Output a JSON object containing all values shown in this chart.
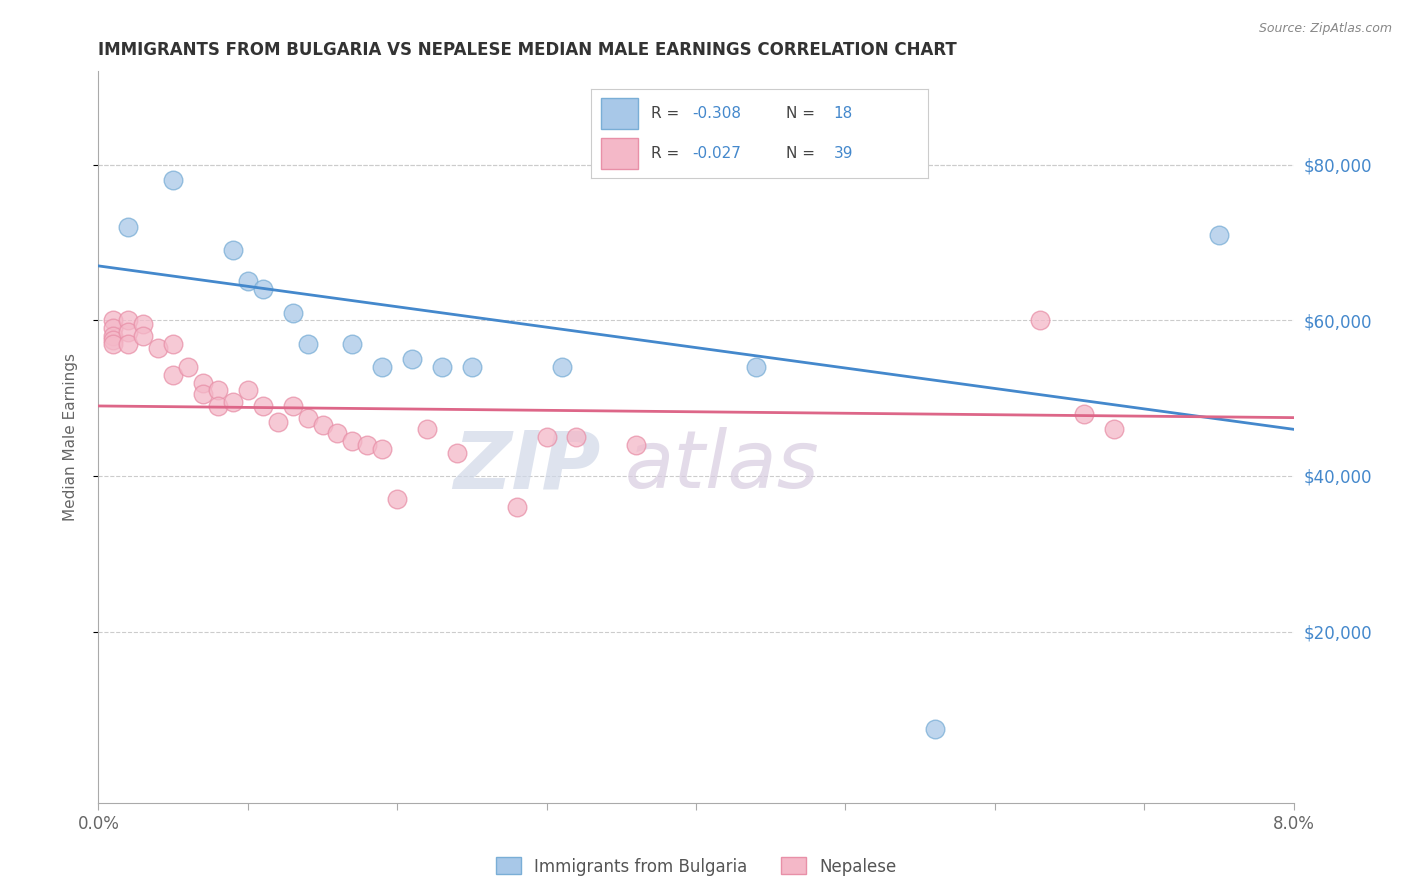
{
  "title": "IMMIGRANTS FROM BULGARIA VS NEPALESE MEDIAN MALE EARNINGS CORRELATION CHART",
  "source": "Source: ZipAtlas.com",
  "ylabel": "Median Male Earnings",
  "legend_blue_label": "Immigrants from Bulgaria",
  "legend_pink_label": "Nepalese",
  "watermark_zip": "ZIP",
  "watermark_atlas": "atlas",
  "yticks": [
    20000,
    40000,
    60000,
    80000
  ],
  "ytick_labels": [
    "$20,000",
    "$40,000",
    "$60,000",
    "$80,000"
  ],
  "xlim": [
    0.0,
    0.08
  ],
  "ylim": [
    -2000,
    92000
  ],
  "blue_points_x": [
    0.002,
    0.005,
    0.009,
    0.01,
    0.011,
    0.013,
    0.014,
    0.017,
    0.019,
    0.021,
    0.023,
    0.025,
    0.031,
    0.044,
    0.075
  ],
  "blue_points_y": [
    72000,
    78000,
    69000,
    65000,
    64000,
    61000,
    57000,
    57000,
    54000,
    55000,
    54000,
    54000,
    54000,
    54000,
    71000
  ],
  "blue_outlier_x": [
    0.056
  ],
  "blue_outlier_y": [
    7500
  ],
  "pink_points_x": [
    0.001,
    0.001,
    0.001,
    0.001,
    0.001,
    0.002,
    0.002,
    0.002,
    0.003,
    0.003,
    0.004,
    0.005,
    0.005,
    0.006,
    0.007,
    0.007,
    0.008,
    0.008,
    0.009,
    0.01,
    0.011,
    0.012,
    0.013,
    0.014,
    0.015,
    0.016,
    0.017,
    0.018,
    0.019,
    0.02,
    0.022,
    0.024,
    0.028,
    0.03,
    0.032,
    0.036,
    0.063,
    0.066,
    0.068
  ],
  "pink_points_y": [
    60000,
    59000,
    58000,
    57500,
    57000,
    60000,
    58500,
    57000,
    59500,
    58000,
    56500,
    57000,
    53000,
    54000,
    52000,
    50500,
    51000,
    49000,
    49500,
    51000,
    49000,
    47000,
    49000,
    47500,
    46500,
    45500,
    44500,
    44000,
    43500,
    37000,
    46000,
    43000,
    36000,
    45000,
    45000,
    44000,
    60000,
    48000,
    46000
  ],
  "blue_line_x": [
    0.0,
    0.08
  ],
  "blue_line_y": [
    67000,
    46000
  ],
  "pink_line_x": [
    0.0,
    0.08
  ],
  "pink_line_y": [
    49000,
    47500
  ],
  "grid_color": "#cccccc",
  "blue_color": "#a8c8e8",
  "pink_color": "#f4b8c8",
  "blue_edge_color": "#7aaed6",
  "pink_edge_color": "#e890a8",
  "blue_line_color": "#4488cc",
  "pink_line_color": "#dd6688",
  "title_color": "#333333",
  "axis_label_color": "#666666",
  "right_axis_label_color": "#4488cc",
  "xtick_positions": [
    0.0,
    0.01,
    0.02,
    0.03,
    0.04,
    0.05,
    0.06,
    0.07,
    0.08
  ]
}
